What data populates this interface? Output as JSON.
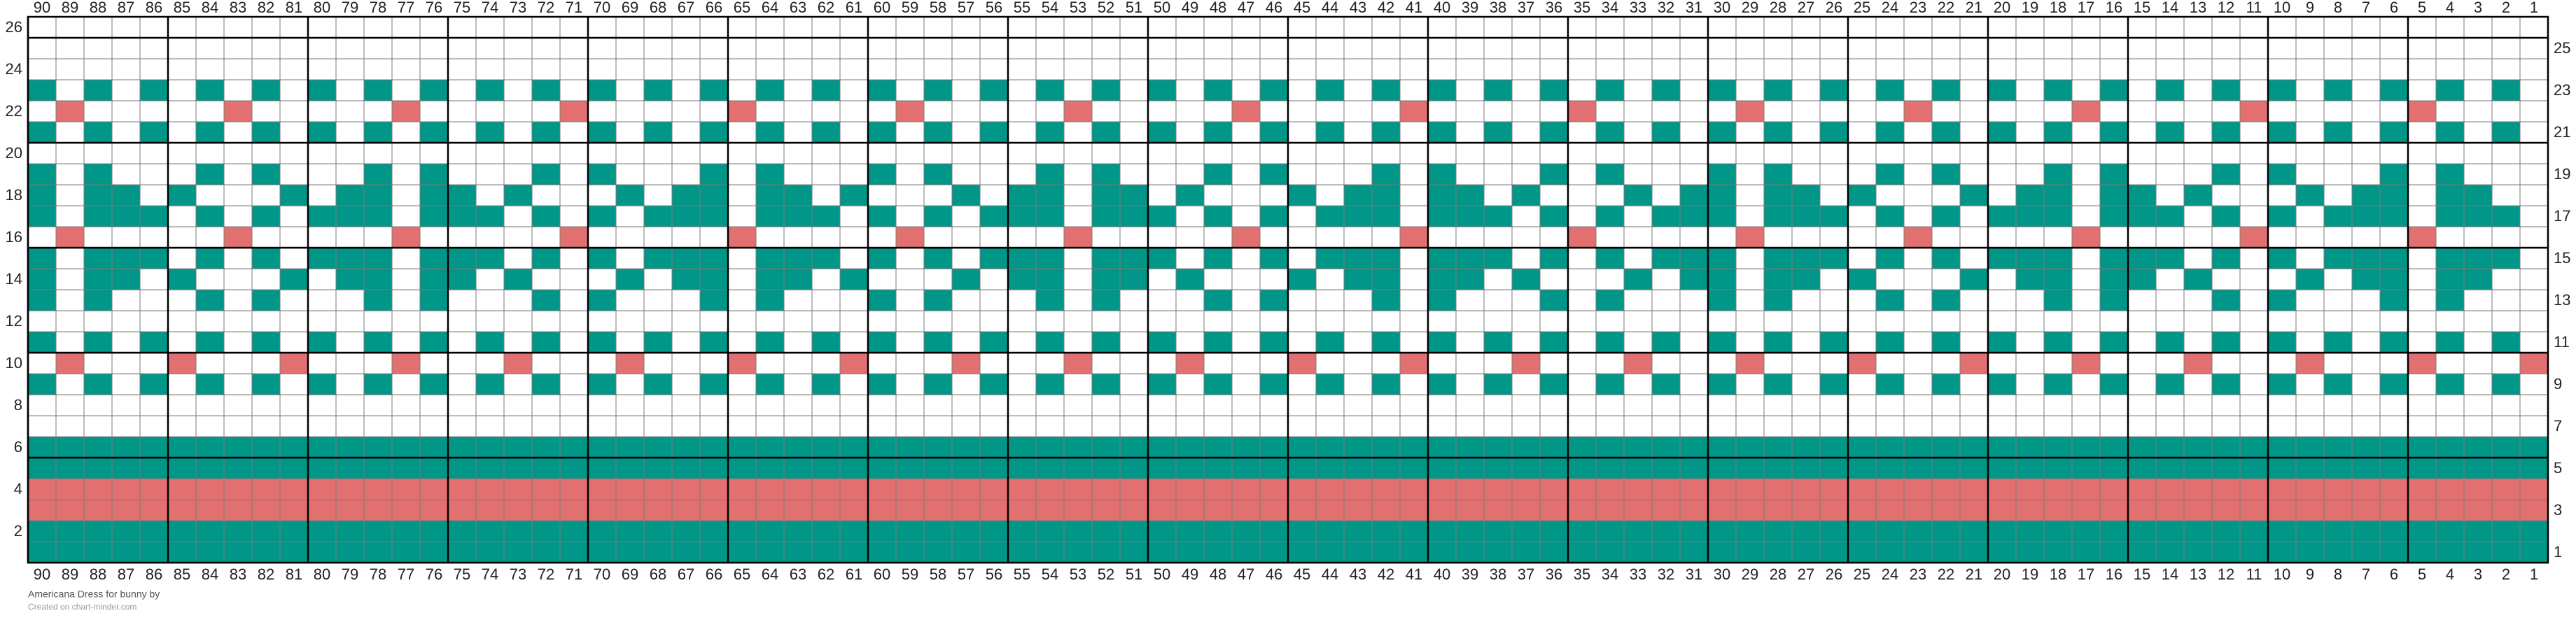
{
  "chart": {
    "colors": [
      "#ffffff",
      "#009688",
      "#e37070"
    ],
    "column_labels": [
      90,
      89,
      88,
      87,
      86,
      85,
      84,
      83,
      82,
      81,
      80,
      79,
      78,
      77,
      76,
      75,
      74,
      73,
      72,
      71,
      70,
      69,
      68,
      67,
      66,
      65,
      64,
      63,
      62,
      61,
      60,
      59,
      58,
      57,
      56,
      55,
      54,
      53,
      52,
      51,
      50,
      49,
      48,
      47,
      46,
      45,
      44,
      43,
      42,
      41,
      40,
      39,
      38,
      37,
      36,
      35,
      34,
      33,
      32,
      31,
      30,
      29,
      28,
      27,
      26,
      25,
      24,
      23,
      22,
      21,
      20,
      19,
      18,
      17,
      16,
      15,
      14,
      13,
      12,
      11,
      10,
      9,
      8,
      7,
      6,
      5,
      4,
      3,
      2,
      1
    ],
    "rows": [
      {
        "label": 26,
        "cells": "000000000000000000000000000000000000000000000000000000000000000000000000000000000000000000"
      },
      {
        "label": 25,
        "cells": "000000000000000000000000000000000000000000000000000000000000000000000000000000000000000000"
      },
      {
        "label": 24,
        "cells": "000000000000000000000000000000000000000000000000000000000000000000000000000000000000000000"
      },
      {
        "label": 23,
        "cells": "101010101010101010101010101010101010101010101010101010101010101010101010101010101010101010"
      },
      {
        "label": 22,
        "cells": "020000020000020000020000020000020000020000020000020000020000020000020000020000020000020000"
      },
      {
        "label": 21,
        "cells": "101010101010101010101010101010101010101010101010101010101010101010101010101010101010101010"
      },
      {
        "label": 20,
        "cells": "000000000000000000000000000000000000000000000000000000000000000000000000000000000000000000"
      },
      {
        "label": 19,
        "cells": "101000101000101000101000101000101000101000101000101000101000101000101000101000101000101000"
      },
      {
        "label": 18,
        "cells": "101101000101101101000101101101000101101101000101101101000101101101000101101101000101101100"
      },
      {
        "label": 17,
        "cells": "101110101011101110101011101110101011101110101011101110101011101110101011101110101011101110"
      },
      {
        "label": 16,
        "cells": "020000020000020000020000020000020000020000020000020000020000020000020000020000020000020000"
      },
      {
        "label": 15,
        "cells": "101110101011101110101011101110101011101110101011101110101011101110101011101110101011101110"
      },
      {
        "label": 14,
        "cells": "101101000101101101000101101101000101101101000101101101000101101101000101101101000101101100"
      },
      {
        "label": 13,
        "cells": "101000101000101000101000101000101000101000101000101000101000101000101000101000101000101000"
      },
      {
        "label": 12,
        "cells": "000000000000000000000000000000000000000000000000000000000000000000000000000000000000000000"
      },
      {
        "label": 11,
        "cells": "101010101010101010101010101010101010101010101010101010101010101010101010101010101010101010"
      },
      {
        "label": 10,
        "cells": "020002000200020002000200020002000200020002000200020002000200020002000200020002000200020002"
      },
      {
        "label": 9,
        "cells": "101010101010101010101010101010101010101010101010101010101010101010101010101010101010101010"
      },
      {
        "label": 8,
        "cells": "000000000000000000000000000000000000000000000000000000000000000000000000000000000000000000"
      },
      {
        "label": 7,
        "cells": "000000000000000000000000000000000000000000000000000000000000000000000000000000000000000000"
      },
      {
        "label": 6,
        "cells": "111111111111111111111111111111111111111111111111111111111111111111111111111111111111111111"
      },
      {
        "label": 5,
        "cells": "111111111111111111111111111111111111111111111111111111111111111111111111111111111111111111"
      },
      {
        "label": 4,
        "cells": "222222222222222222222222222222222222222222222222222222222222222222222222222222222222222222"
      },
      {
        "label": 3,
        "cells": "222222222222222222222222222222222222222222222222222222222222222222222222222222222222222222"
      },
      {
        "label": 2,
        "cells": "111111111111111111111111111111111111111111111111111111111111111111111111111111111111111111"
      },
      {
        "label": 1,
        "cells": "111111111111111111111111111111111111111111111111111111111111111111111111111111111111111111"
      }
    ]
  },
  "footer": {
    "title": "Americana Dress for bunny by",
    "credit": "Created on chart-minder.com"
  }
}
